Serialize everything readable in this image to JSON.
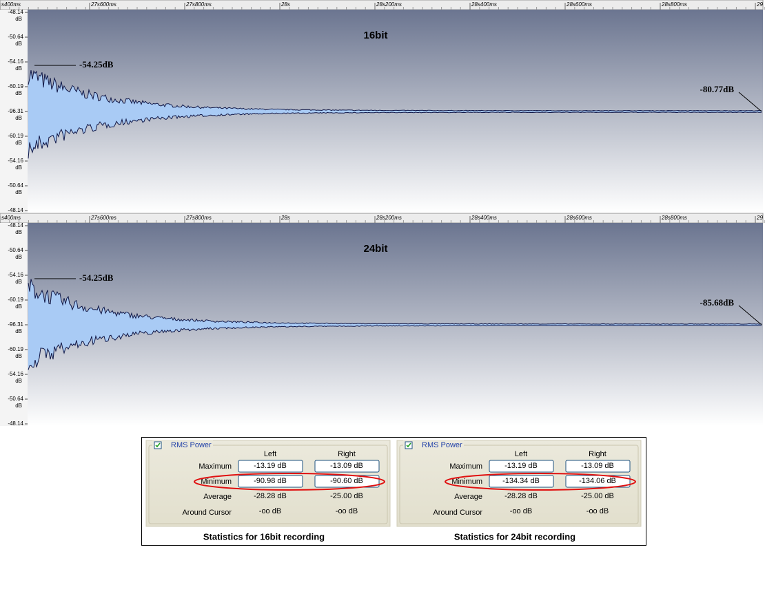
{
  "waveforms": [
    {
      "title": "16bit",
      "time_ruler": [
        "s400ms",
        "27s600ms",
        "27s800ms",
        "28s",
        "28s200ms",
        "28s400ms",
        "28s600ms",
        "28s800ms",
        "29"
      ],
      "db_scale": [
        "-48.14",
        "-50.64",
        "-54.16",
        "-60.19",
        "-96.31",
        "-60.19",
        "-54.16",
        "-50.64",
        "-48.14"
      ],
      "db_unit": "dB",
      "peak_label": "-54.25dB",
      "tail_label": "-80.77dB"
    },
    {
      "title": "24bit",
      "time_ruler": [
        "s400ms",
        "27s600ms",
        "27s800ms",
        "28s",
        "28s200ms",
        "28s400ms",
        "28s600ms",
        "28s800ms",
        "29"
      ],
      "db_scale": [
        "-48.14",
        "-50.64",
        "-54.16",
        "-60.19",
        "-96.31",
        "-60.19",
        "-54.16",
        "-50.64",
        "-48.14"
      ],
      "db_unit": "dB",
      "peak_label": "-54.25dB",
      "tail_label": "-85.68dB"
    }
  ],
  "statistics": [
    {
      "section": "RMS Power",
      "columns": [
        "Left",
        "Right"
      ],
      "rows": [
        {
          "label": "Maximum",
          "values": [
            "-13.19 dB",
            "-13.09 dB"
          ]
        },
        {
          "label": "Minimum",
          "values": [
            "-90.98 dB",
            "-90.60 dB"
          ]
        },
        {
          "label": "Average",
          "values": [
            "-28.28 dB",
            "-25.00 dB"
          ]
        },
        {
          "label": "Around Cursor",
          "values": [
            "-oo dB",
            "-oo dB"
          ]
        }
      ],
      "caption": "Statistics for 16bit recording"
    },
    {
      "section": "RMS Power",
      "columns": [
        "Left",
        "Right"
      ],
      "rows": [
        {
          "label": "Maximum",
          "values": [
            "-13.19 dB",
            "-13.09 dB"
          ]
        },
        {
          "label": "Minimum",
          "values": [
            "-134.34 dB",
            "-134.06 dB"
          ]
        },
        {
          "label": "Average",
          "values": [
            "-28.28 dB",
            "-25.00 dB"
          ]
        },
        {
          "label": "Around Cursor",
          "values": [
            "-oo dB",
            "-oo dB"
          ]
        }
      ],
      "caption": "Statistics for 24bit recording"
    }
  ]
}
